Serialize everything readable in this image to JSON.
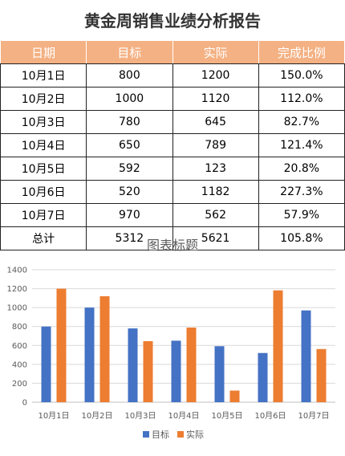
{
  "report": {
    "title": "黄金周销售业绩分析报告",
    "headers": [
      "日期",
      "目标",
      "实际",
      "完成比例"
    ],
    "rows": [
      [
        "10月1日",
        "800",
        "1200",
        "150.0%"
      ],
      [
        "10月2日",
        "1000",
        "1120",
        "112.0%"
      ],
      [
        "10月3日",
        "780",
        "645",
        "82.7%"
      ],
      [
        "10月4日",
        "650",
        "789",
        "121.4%"
      ],
      [
        "10月5日",
        "592",
        "123",
        "20.8%"
      ],
      [
        "10月6日",
        "520",
        "1182",
        "227.3%"
      ],
      [
        "10月7日",
        "970",
        "562",
        "57.9%"
      ],
      [
        "总计",
        "5312",
        "5621",
        "105.8%"
      ]
    ]
  },
  "chart_data": {
    "type": "bar",
    "title": "图表标题",
    "categories": [
      "10月1日",
      "10月2日",
      "10月3日",
      "10月4日",
      "10月5日",
      "10月6日",
      "10月7日"
    ],
    "series": [
      {
        "name": "目标",
        "values": [
          800,
          1000,
          780,
          650,
          592,
          520,
          970
        ],
        "color": "#4472c4"
      },
      {
        "name": "实际",
        "values": [
          1200,
          1120,
          645,
          789,
          123,
          1182,
          562
        ],
        "color": "#ed7d31"
      }
    ],
    "ylim": [
      0,
      1400
    ],
    "yticks": [
      0,
      200,
      400,
      600,
      800,
      1000,
      1200,
      1400
    ],
    "grid": true,
    "legend": "bottom"
  }
}
